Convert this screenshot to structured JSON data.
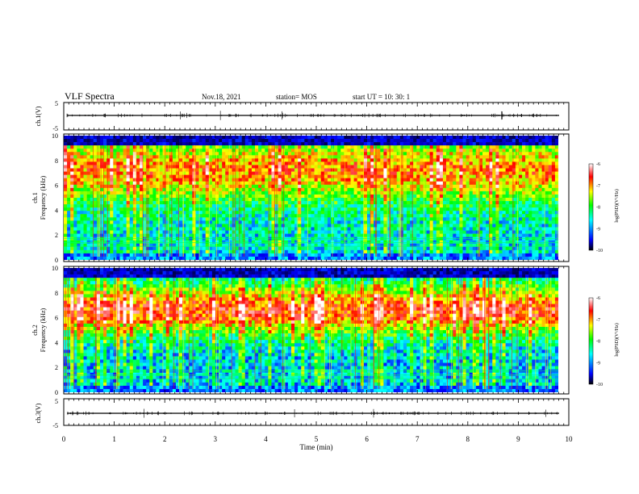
{
  "header": {
    "title": "VLF Spectra",
    "date": "Nov.18, 2021",
    "station": "station= MOS",
    "start": "start  UT  =   10: 30: 1"
  },
  "colormap": [
    "#000000",
    "#0000ff",
    "#00ffff",
    "#00ff00",
    "#ffff00",
    "#ff0000",
    "#ffffff"
  ],
  "chart_data": [
    {
      "type": "line",
      "panel": "ch1-waveform",
      "ylabel": "ch.1(V)",
      "ylim": [
        -5,
        5
      ],
      "yticks": [
        "5",
        "-5"
      ],
      "xlim": [
        0,
        10
      ]
    },
    {
      "type": "heatmap",
      "panel": "ch1-spectrogram",
      "ylabel_line1": "ch.1",
      "ylabel_line2": "Frequency (kHz)",
      "ylim": [
        0,
        10
      ],
      "yticks": [
        "0",
        "2",
        "4",
        "6",
        "8",
        "10"
      ],
      "xlim": [
        0,
        10
      ],
      "colorbar_ticks": [
        "-6",
        "-7",
        "-8",
        "-9",
        "-10"
      ],
      "colorbar_range": [
        -10,
        -6
      ],
      "colorbar_label": "log(PSD)(V²/Hz)"
    },
    {
      "type": "heatmap",
      "panel": "ch2-spectrogram",
      "ylabel_line1": "ch.2",
      "ylabel_line2": "Frequency (kHz)",
      "ylim": [
        0,
        10
      ],
      "yticks": [
        "0",
        "2",
        "4",
        "6",
        "8",
        "10"
      ],
      "xlim": [
        0,
        10
      ],
      "colorbar_ticks": [
        "-6",
        "-7",
        "-8",
        "-9",
        "-10"
      ],
      "colorbar_range": [
        -10,
        -6
      ],
      "colorbar_label": "log(PSD)(V²/Hz)"
    },
    {
      "type": "line",
      "panel": "ch3-waveform",
      "ylabel": "ch.3(V)",
      "ylim": [
        -5,
        5
      ],
      "yticks": [
        "5",
        "-5"
      ],
      "xlim": [
        0,
        10
      ],
      "xlabel": "Time  (min)",
      "xticks": [
        "0",
        "1",
        "2",
        "3",
        "4",
        "5",
        "6",
        "7",
        "8",
        "9",
        "10"
      ]
    }
  ]
}
